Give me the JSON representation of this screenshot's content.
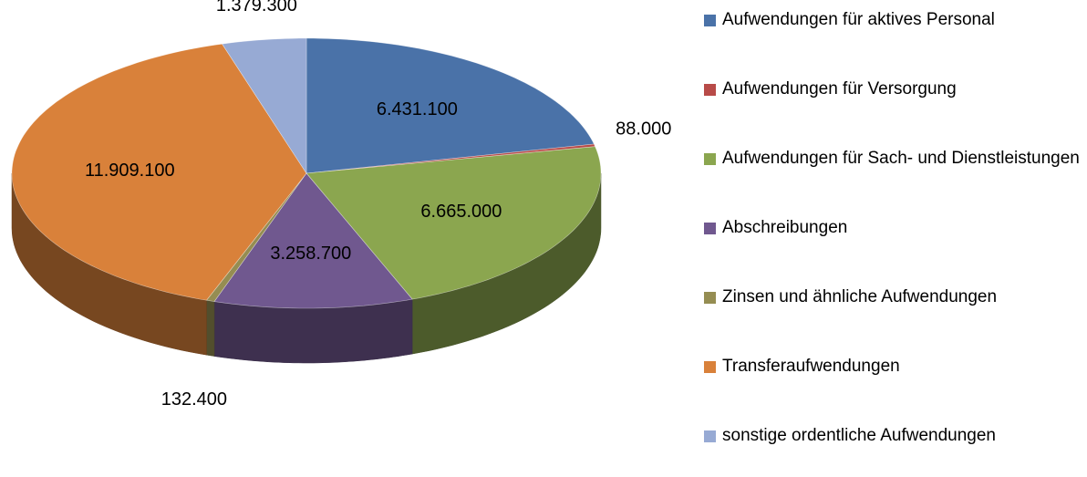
{
  "chart_data": {
    "type": "pie3d",
    "categories": [
      "Aufwendungen für aktives Personal",
      "Aufwendungen für Versorgung",
      "Aufwendungen für Sach- und Dienstleistungen",
      "Abschreibungen",
      "Zinsen und ähnliche Aufwendungen",
      "Transferaufwendungen",
      "sonstige ordentliche Aufwendungen"
    ],
    "values": [
      6431100,
      88000,
      6665000,
      3258700,
      132400,
      11909100,
      1379300
    ],
    "value_labels": [
      "6.431.100",
      "88.000",
      "6.665.000",
      "3.258.700",
      "132.400",
      "11.909.100",
      "1.379.300"
    ],
    "colors": [
      "#4a72a8",
      "#b84b48",
      "#8ba64f",
      "#70588f",
      "#958d52",
      "#d9813a",
      "#97aad4"
    ],
    "legend": "right"
  }
}
